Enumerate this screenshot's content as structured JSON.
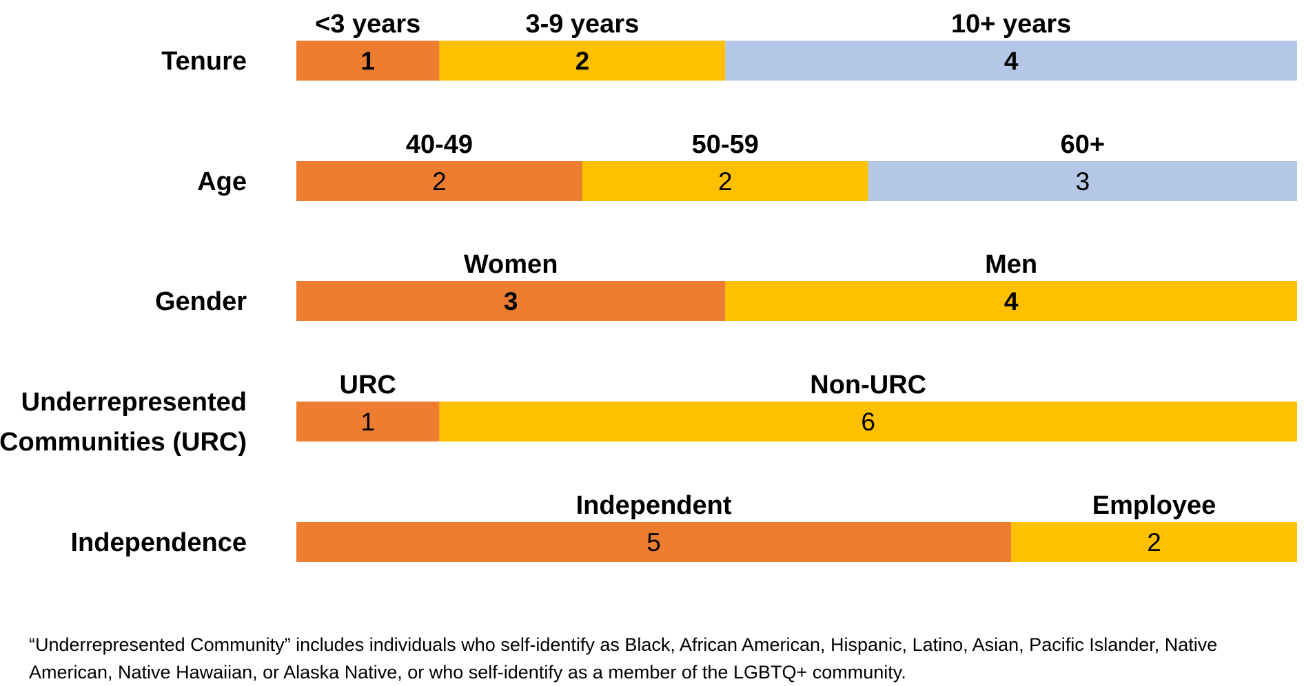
{
  "chart_data": {
    "type": "bar",
    "orientation": "horizontal-stacked",
    "title": "",
    "xlabel": "",
    "ylabel": "",
    "total": 7,
    "colors": [
      "#ED7D31",
      "#FFC000",
      "#B4C7E7"
    ],
    "rows": [
      {
        "label": [
          "Tenure"
        ],
        "bold_values": true,
        "segments": [
          {
            "name": "<3 years",
            "value": 1
          },
          {
            "name": "3-9 years",
            "value": 2
          },
          {
            "name": "10+ years",
            "value": 4
          }
        ]
      },
      {
        "label": [
          "Age"
        ],
        "bold_values": false,
        "segments": [
          {
            "name": "40-49",
            "value": 2
          },
          {
            "name": "50-59",
            "value": 2
          },
          {
            "name": "60+",
            "value": 3
          }
        ]
      },
      {
        "label": [
          "Gender"
        ],
        "bold_values": true,
        "segments": [
          {
            "name": "Women",
            "value": 3
          },
          {
            "name": "Men",
            "value": 4
          }
        ]
      },
      {
        "label": [
          "Underrepresented",
          "Communities (URC)"
        ],
        "bold_values": false,
        "segments": [
          {
            "name": "URC",
            "value": 1
          },
          {
            "name": "Non-URC",
            "value": 6
          }
        ]
      },
      {
        "label": [
          "Independence"
        ],
        "bold_values": false,
        "segments": [
          {
            "name": "Independent",
            "value": 5
          },
          {
            "name": "Employee",
            "value": 2
          }
        ]
      }
    ]
  },
  "footnote": "“Underrepresented Community” includes individuals who self-identify as Black, African American, Hispanic, Latino, Asian, Pacific Islander, Native American, Native Hawaiian, or Alaska Native, or who self-identify as a member of the LGBTQ+ community."
}
